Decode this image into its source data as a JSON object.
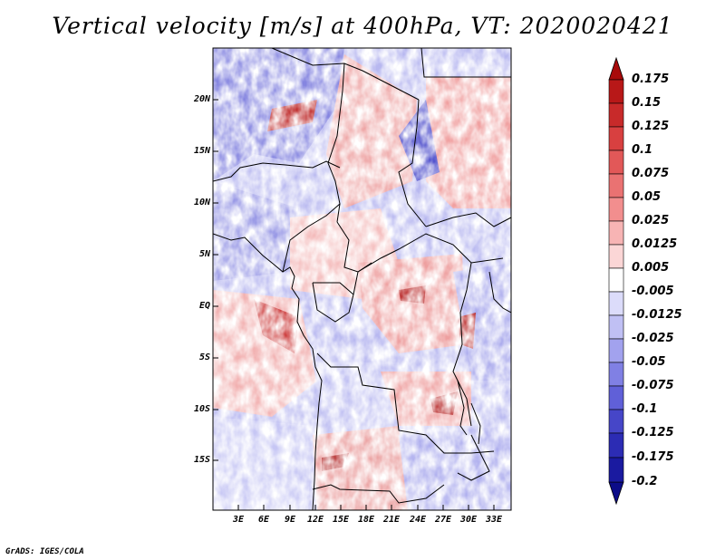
{
  "title": "Vertical velocity [m/s] at 400hPa, VT: 2020020421",
  "footer": "GrADS: IGES/COLA",
  "map": {
    "lat_range": [
      -20,
      25
    ],
    "lon_range": [
      0,
      35
    ],
    "lat_ticks": [
      "20N",
      "15N",
      "10N",
      "5N",
      "EQ",
      "5S",
      "10S",
      "15S"
    ],
    "lon_ticks": [
      "3E",
      "6E",
      "9E",
      "12E",
      "15E",
      "18E",
      "21E",
      "24E",
      "27E",
      "30E",
      "33E"
    ]
  },
  "colorbar": {
    "labels": [
      "0.175",
      "0.15",
      "0.125",
      "0.1",
      "0.075",
      "0.05",
      "0.025",
      "0.0125",
      "0.005",
      "-0.005",
      "-0.0125",
      "-0.025",
      "-0.05",
      "-0.075",
      "-0.1",
      "-0.125",
      "-0.175",
      "-0.2"
    ],
    "colors": [
      "#a80a0a",
      "#b81818",
      "#c82a2a",
      "#d84040",
      "#e25858",
      "#ea7272",
      "#f28e8e",
      "#f7b4b4",
      "#fbd6d6",
      "#ffffff",
      "#dcdcfa",
      "#c0c0f4",
      "#a2a2ee",
      "#8080e4",
      "#6060d8",
      "#4646c8",
      "#2c2cb4",
      "#1a1aa0",
      "#0c0c88"
    ]
  }
}
